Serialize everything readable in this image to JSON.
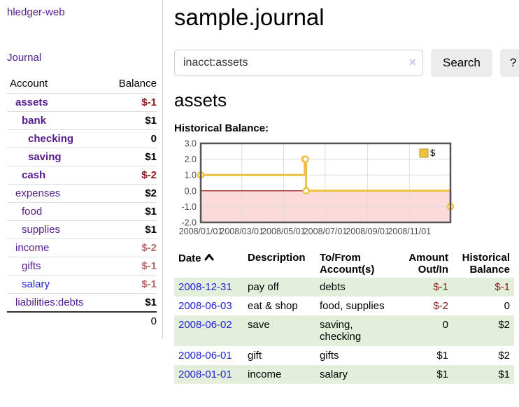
{
  "app": {
    "brand": "hledger-web",
    "nav_journal": "Journal"
  },
  "sidebar": {
    "header": {
      "account": "Account",
      "balance": "Balance"
    },
    "rows": [
      {
        "name": "assets",
        "indent": 1,
        "bold": true,
        "balance": "$-1",
        "balance_style": "neg-strong",
        "link": "visited"
      },
      {
        "name": "bank",
        "indent": 2,
        "bold": true,
        "balance": "$1",
        "balance_style": "pos",
        "link": "visited"
      },
      {
        "name": "checking",
        "indent": 3,
        "bold": true,
        "balance": "0",
        "balance_style": "pos",
        "link": "visited"
      },
      {
        "name": "saving",
        "indent": 3,
        "bold": true,
        "balance": "$1",
        "balance_style": "pos",
        "link": "visited"
      },
      {
        "name": "cash",
        "indent": 2,
        "bold": true,
        "balance": "$-2",
        "balance_style": "neg-strong",
        "link": "visited"
      },
      {
        "name": "expenses",
        "indent": 1,
        "bold": false,
        "balance": "$2",
        "balance_style": "pos",
        "link": "visited"
      },
      {
        "name": "food",
        "indent": 2,
        "bold": false,
        "balance": "$1",
        "balance_style": "pos",
        "link": "visited"
      },
      {
        "name": "supplies",
        "indent": 2,
        "bold": false,
        "balance": "$1",
        "balance_style": "pos",
        "link": "visited"
      },
      {
        "name": "income",
        "indent": 1,
        "bold": false,
        "balance": "$-2",
        "balance_style": "neg-muted",
        "link": "visited"
      },
      {
        "name": "gifts",
        "indent": 2,
        "bold": false,
        "balance": "$-1",
        "balance_style": "neg-muted",
        "link": "visited"
      },
      {
        "name": "salary",
        "indent": 2,
        "bold": false,
        "balance": "$-1",
        "balance_style": "neg-muted",
        "link": "unvisited"
      },
      {
        "name": "liabilities:debts",
        "indent": 1,
        "bold": false,
        "balance": "$1",
        "balance_style": "pos",
        "link": "visited"
      }
    ],
    "total": "0"
  },
  "header": {
    "title": "sample.journal"
  },
  "search": {
    "value": "inacct:assets",
    "clear_icon": "×",
    "button": "Search",
    "help_button": "?"
  },
  "account_page": {
    "heading": "assets",
    "chart_label": "Historical Balance:"
  },
  "chart_data": {
    "type": "line",
    "style": "step",
    "title": "Historical Balance",
    "series": [
      {
        "name": "$",
        "color": "#edc240",
        "points": [
          [
            "2008-01-01",
            1
          ],
          [
            "2008-06-01",
            2
          ],
          [
            "2008-06-02",
            2
          ],
          [
            "2008-06-03",
            0
          ],
          [
            "2008-12-31",
            -1
          ]
        ]
      }
    ],
    "ylim": [
      -2,
      3
    ],
    "yticks": [
      3.0,
      2.0,
      1.0,
      0.0,
      -1.0,
      -2.0
    ],
    "xticks": [
      "2008/01/01",
      "2008/03/01",
      "2008/05/01",
      "2008/07/01",
      "2008/09/01",
      "2008/11/01"
    ],
    "grid": true,
    "legend": {
      "label": "$",
      "position": "top-right"
    },
    "negative_region_color": "#fbdada",
    "zero_line_color": "#8b0000",
    "line_color": "#edc240",
    "border_color": "#545454",
    "grid_color": "#dcdcdc",
    "tick_text_color": "#4d4d4d"
  },
  "register": {
    "columns": {
      "date": "Date",
      "description": "Description",
      "accounts": "To/From Account(s)",
      "amount": "Amount Out/In",
      "balance": "Historical Balance"
    },
    "rows": [
      {
        "date": "2008-12-31",
        "description": "pay off",
        "accounts": "debts",
        "amount": "$-1",
        "balance": "$-1"
      },
      {
        "date": "2008-06-03",
        "description": "eat & shop",
        "accounts": "food, supplies",
        "amount": "$-2",
        "balance": "0"
      },
      {
        "date": "2008-06-02",
        "description": "save",
        "accounts": "saving, checking",
        "amount": "0",
        "balance": "$2"
      },
      {
        "date": "2008-06-01",
        "description": "gift",
        "accounts": "gifts",
        "amount": "$1",
        "balance": "$2"
      },
      {
        "date": "2008-01-01",
        "description": "income",
        "accounts": "salary",
        "amount": "$1",
        "balance": "$1"
      }
    ]
  },
  "colors": {
    "link_purple": "#561b8d",
    "link_blue": "#2222d5",
    "neg_strong": "#8b1a1a",
    "neg_muted": "#b56a6a",
    "stripe_green": "#e4efdb",
    "button_bg": "#ececec"
  }
}
